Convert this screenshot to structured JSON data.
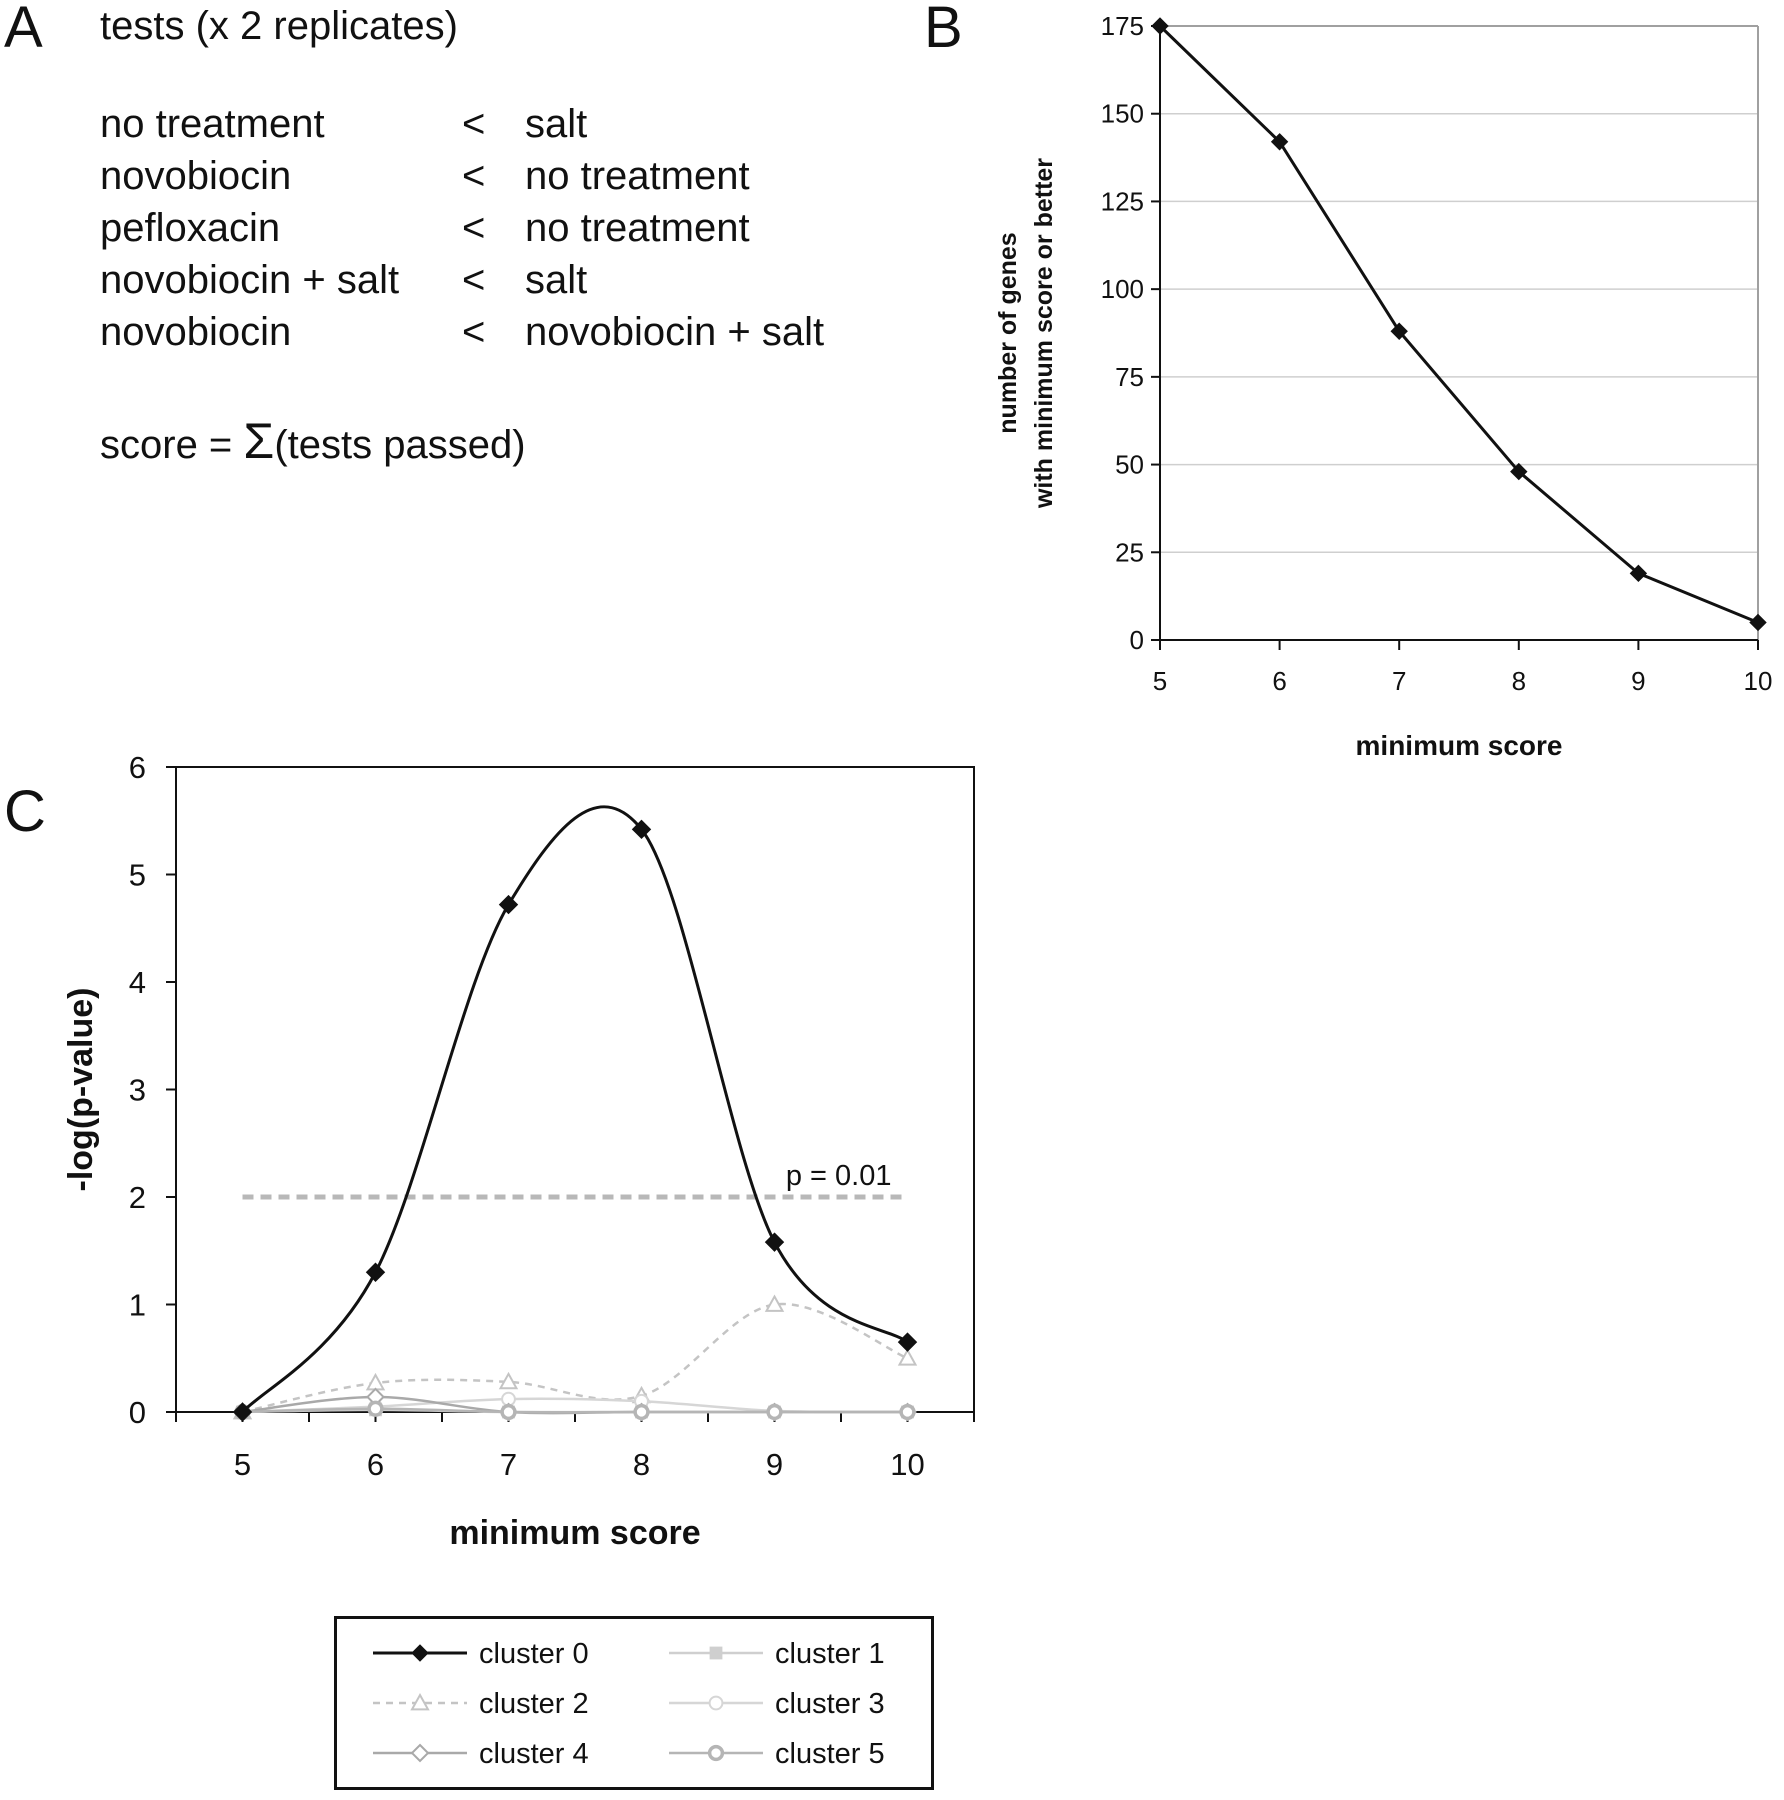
{
  "panels": {
    "A": {
      "letter": "A",
      "title": "tests (x 2 replicates)",
      "tests": [
        {
          "left": "no treatment",
          "op": "<",
          "right": "salt"
        },
        {
          "left": "novobiocin",
          "op": "<",
          "right": "no treatment"
        },
        {
          "left": "pefloxacin",
          "op": "<",
          "right": "no treatment"
        },
        {
          "left": "novobiocin + salt",
          "op": "<",
          "right": "salt"
        },
        {
          "left": "novobiocin",
          "op": "<",
          "right": "novobiocin + salt"
        }
      ],
      "score": {
        "prefix": "score = ",
        "sigma": "Σ",
        "suffix": "(tests passed)"
      }
    },
    "B": {
      "letter": "B"
    },
    "C": {
      "letter": "C"
    }
  },
  "chart_data": [
    {
      "panel": "B",
      "type": "line",
      "xlabel": "minimum score",
      "ylabel_lines": [
        "number of genes",
        "with minimum score or better"
      ],
      "x": [
        5,
        6,
        7,
        8,
        9,
        10
      ],
      "xticks": [
        "5",
        "6",
        "7",
        "8",
        "9",
        "10"
      ],
      "yticks": [
        "0",
        "25",
        "50",
        "75",
        "100",
        "125",
        "150",
        "175"
      ],
      "xlim": [
        5,
        10
      ],
      "ylim": [
        0,
        175
      ],
      "grid": "horizontal",
      "series": [
        {
          "values": [
            175,
            142,
            88,
            48,
            19,
            5
          ],
          "marker": "diamond",
          "color": "#111111"
        }
      ]
    },
    {
      "panel": "C",
      "type": "line",
      "xlabel": "minimum score",
      "ylabel": "-log(p-value)",
      "x": [
        5,
        6,
        7,
        8,
        9,
        10
      ],
      "xticks": [
        "5",
        "6",
        "7",
        "8",
        "9",
        "10"
      ],
      "yticks": [
        "0",
        "1",
        "2",
        "3",
        "4",
        "5",
        "6"
      ],
      "xlim": [
        4.5,
        10.5
      ],
      "ylim": [
        0,
        6
      ],
      "grid": false,
      "threshold": {
        "y": 2,
        "label": "p = 0.01",
        "color": "#b8b8b8"
      },
      "legend_position": "bottom",
      "series": [
        {
          "name": "cluster 0",
          "values": [
            0,
            1.3,
            4.72,
            5.42,
            1.58,
            0.65
          ],
          "marker": "diamond",
          "color": "#111111",
          "dash": false
        },
        {
          "name": "cluster 1",
          "values": [
            0,
            0.02,
            0,
            0,
            0,
            0
          ],
          "marker": "square",
          "color": "#cfcfcf",
          "dash": false
        },
        {
          "name": "cluster 2",
          "values": [
            0,
            0.27,
            0.28,
            0.15,
            1.0,
            0.5
          ],
          "marker": "triangle",
          "color": "#c4c4c4",
          "dash": true
        },
        {
          "name": "cluster 3",
          "values": [
            0,
            0.05,
            0.12,
            0.1,
            0.01,
            0
          ],
          "marker": "circle",
          "color": "#d6d6d6",
          "dash": false
        },
        {
          "name": "cluster 4",
          "values": [
            0,
            0.14,
            0,
            0,
            0,
            0
          ],
          "marker": "diamond-open",
          "color": "#a9a9a9",
          "dash": false
        },
        {
          "name": "cluster 5",
          "values": [
            0,
            0.03,
            0,
            0,
            0,
            0
          ],
          "marker": "circle-thick",
          "color": "#b5b5b5",
          "dash": false
        }
      ]
    }
  ]
}
